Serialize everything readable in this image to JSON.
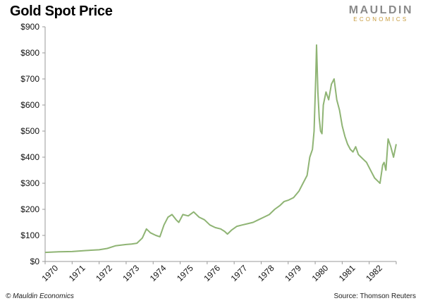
{
  "header": {
    "title": "Gold Spot Price",
    "logo_top": "MAULDIN",
    "logo_bottom": "ECONOMICS"
  },
  "footer": {
    "copyright": "© Mauldin Economics",
    "source": "Source: Thomson Reuters"
  },
  "colors": {
    "line": "#8fb474",
    "axis": "#9a9a9a"
  },
  "chart_data": {
    "type": "line",
    "title": "Gold Spot Price",
    "xlabel": "",
    "ylabel": "",
    "xlim": [
      1970,
      1983
    ],
    "ylim": [
      0,
      900
    ],
    "grid": false,
    "y_ticks": [
      0,
      100,
      200,
      300,
      400,
      500,
      600,
      700,
      800,
      900
    ],
    "y_tick_labels": [
      "$0",
      "$100",
      "$200",
      "$300",
      "$400",
      "$500",
      "$600",
      "$700",
      "$800",
      "$900"
    ],
    "x_ticks": [
      1970,
      1971,
      1972,
      1973,
      1974,
      1975,
      1976,
      1977,
      1978,
      1979,
      1980,
      1981,
      1982
    ],
    "x_tick_labels": [
      "1970",
      "1971",
      "1972",
      "1973",
      "1974",
      "1975",
      "1976",
      "1977",
      "1978",
      "1979",
      "1980",
      "1981",
      "1982"
    ],
    "series": [
      {
        "name": "Gold Spot Price",
        "x": [
          1970.0,
          1970.5,
          1971.0,
          1971.5,
          1972.0,
          1972.3,
          1972.6,
          1973.0,
          1973.2,
          1973.4,
          1973.6,
          1973.75,
          1973.9,
          1974.1,
          1974.25,
          1974.4,
          1974.55,
          1974.7,
          1974.85,
          1974.95,
          1975.1,
          1975.3,
          1975.5,
          1975.7,
          1975.9,
          1976.1,
          1976.3,
          1976.5,
          1976.65,
          1976.75,
          1976.9,
          1977.1,
          1977.3,
          1977.5,
          1977.7,
          1977.9,
          1978.1,
          1978.3,
          1978.5,
          1978.7,
          1978.85,
          1979.0,
          1979.2,
          1979.4,
          1979.55,
          1979.7,
          1979.8,
          1979.9,
          1979.96,
          1980.02,
          1980.05,
          1980.1,
          1980.15,
          1980.2,
          1980.25,
          1980.3,
          1980.4,
          1980.5,
          1980.6,
          1980.7,
          1980.8,
          1980.9,
          1981.0,
          1981.1,
          1981.2,
          1981.3,
          1981.4,
          1981.5,
          1981.6,
          1981.7,
          1981.8,
          1981.9,
          1982.0,
          1982.1,
          1982.2,
          1982.3,
          1982.4,
          1982.5,
          1982.55,
          1982.62,
          1982.7,
          1982.8,
          1982.9,
          1983.0
        ],
        "values": [
          35,
          37,
          38,
          42,
          45,
          50,
          60,
          65,
          67,
          70,
          90,
          125,
          110,
          100,
          95,
          140,
          170,
          180,
          160,
          150,
          180,
          175,
          190,
          170,
          160,
          140,
          130,
          125,
          115,
          105,
          120,
          135,
          140,
          145,
          150,
          160,
          170,
          180,
          200,
          215,
          230,
          235,
          245,
          270,
          300,
          330,
          400,
          430,
          500,
          700,
          830,
          650,
          550,
          500,
          490,
          600,
          650,
          620,
          680,
          700,
          620,
          580,
          520,
          480,
          450,
          430,
          420,
          440,
          410,
          400,
          390,
          380,
          360,
          340,
          320,
          310,
          300,
          370,
          380,
          350,
          470,
          440,
          400,
          450
        ]
      }
    ]
  }
}
